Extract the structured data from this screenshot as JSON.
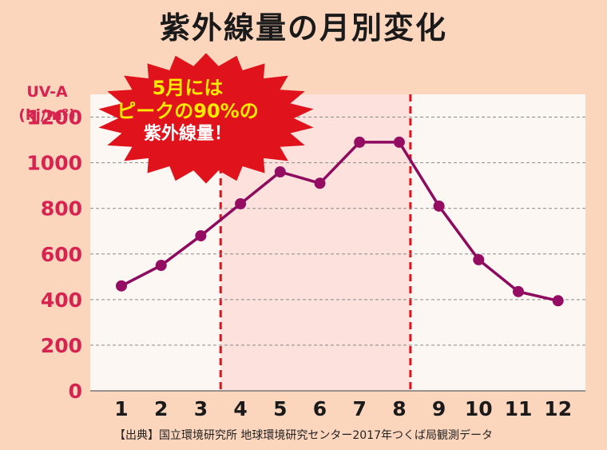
{
  "chart_data": {
    "type": "line",
    "title": "紫外線量の月別変化",
    "ylabel_lines": [
      "UV-A",
      "(kj/m²)"
    ],
    "xlabel": "",
    "categories": [
      "1",
      "2",
      "3",
      "4",
      "5",
      "6",
      "7",
      "8",
      "9",
      "10",
      "11",
      "12"
    ],
    "values": [
      460,
      550,
      680,
      820,
      960,
      910,
      1090,
      1090,
      810,
      575,
      435,
      395
    ],
    "ylim": [
      0,
      1300
    ],
    "yticks": [
      0,
      200,
      400,
      600,
      800,
      1000,
      1200
    ],
    "grid": "horizontal-dashed",
    "highlight_band": {
      "from": 3.5,
      "to": 8.0
    },
    "colors": {
      "line": "#8e0a5e",
      "marker": "#950d62",
      "axis_labels": "#d7234f",
      "plot_background": "#fdf7f4",
      "highlight_fill": "#fde1dd",
      "highlight_border": "#e0121b",
      "page_background": "#fcd5bd",
      "callout_fill": "#e0121b"
    },
    "callout": {
      "line1": "5月には",
      "line2": "ピークの90%の",
      "line3": "紫外線量！"
    },
    "source": "【出典】国立環境研究所 地球環境研究センター2017年つくば局観測データ"
  }
}
